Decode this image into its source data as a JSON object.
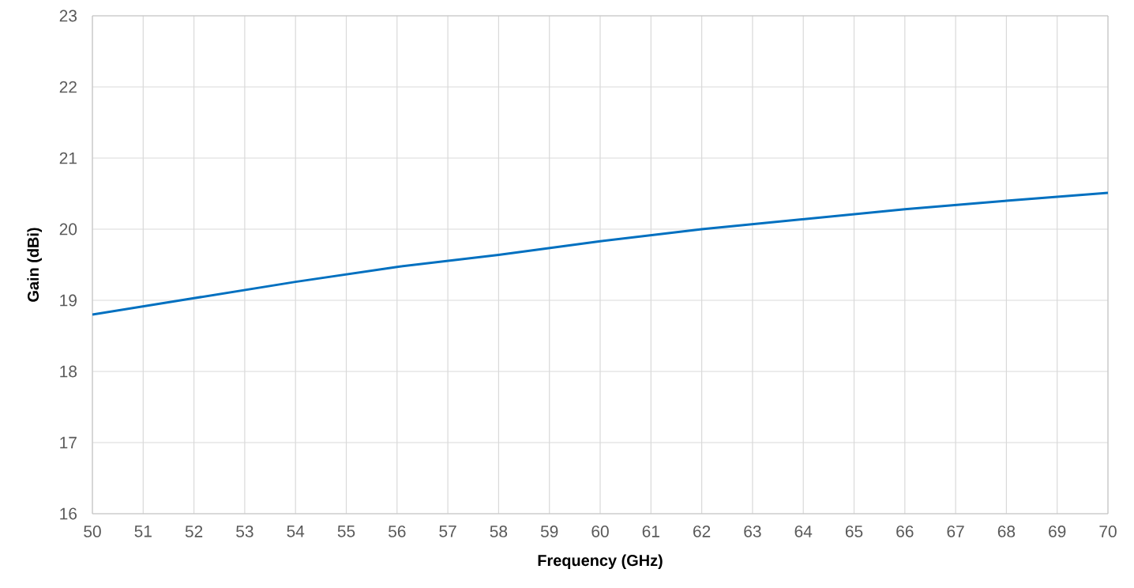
{
  "chart_data": {
    "type": "line",
    "xlabel": "Frequency (GHz)",
    "ylabel": "Gain (dBi)",
    "x": [
      50,
      52,
      54,
      56,
      58,
      60,
      62,
      64,
      66,
      68,
      70
    ],
    "series": [
      {
        "color": "#0070c0",
        "values": [
          18.8,
          19.03,
          19.26,
          19.47,
          19.64,
          19.83,
          20.0,
          20.14,
          20.28,
          20.4,
          20.51
        ]
      }
    ],
    "xlim": [
      50,
      70
    ],
    "ylim": [
      16,
      23
    ],
    "xticks": [
      50,
      51,
      52,
      53,
      54,
      55,
      56,
      57,
      58,
      59,
      60,
      61,
      62,
      63,
      64,
      65,
      66,
      67,
      68,
      69,
      70
    ],
    "yticks": [
      16,
      17,
      18,
      19,
      20,
      21,
      22,
      23
    ],
    "grid": true,
    "marker": "none",
    "line_style": "solid"
  }
}
